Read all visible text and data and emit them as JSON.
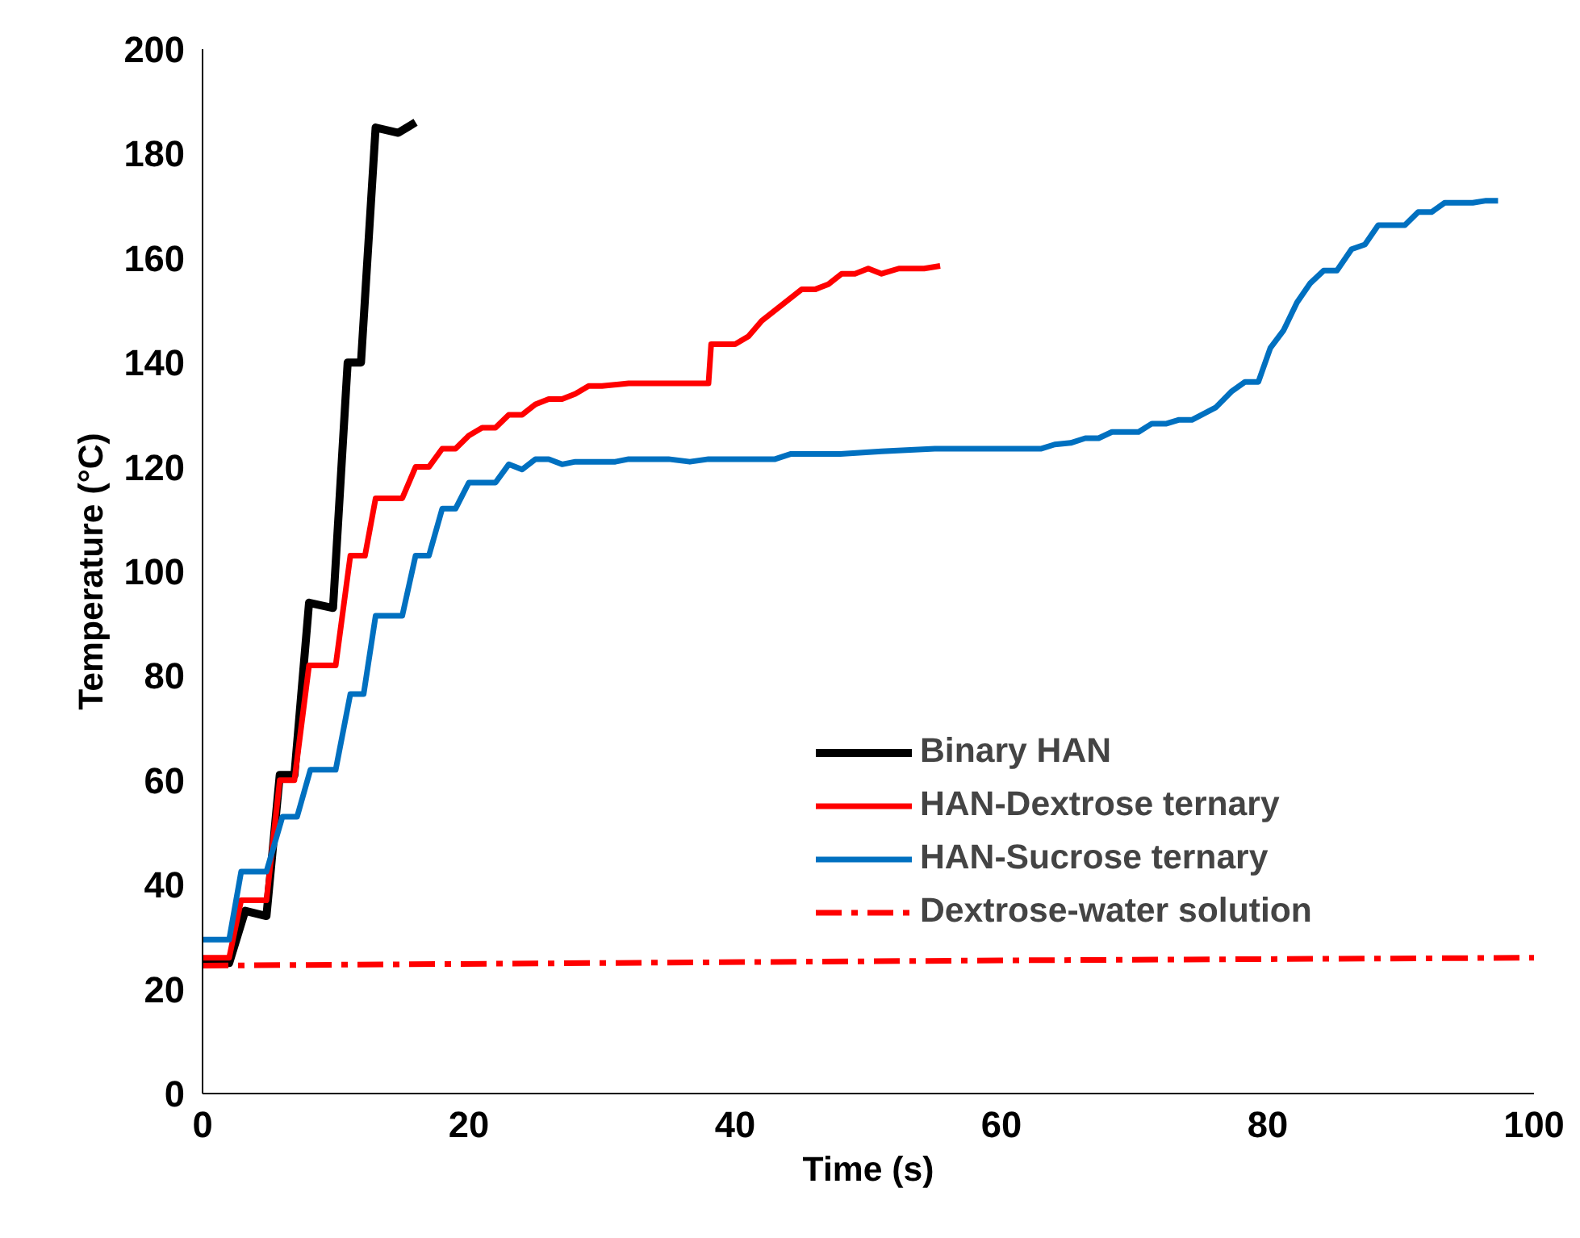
{
  "chart_data": {
    "type": "line",
    "xlabel": "Time (s)",
    "ylabel": "Temperature (°C)",
    "xlim": [
      0,
      100
    ],
    "xticks": [
      0,
      20,
      40,
      60,
      80,
      100
    ],
    "ylim": [
      0,
      200
    ],
    "yticks": [
      0,
      20,
      40,
      60,
      80,
      100,
      120,
      140,
      160,
      180,
      200
    ],
    "grid": false,
    "legend": "right",
    "marker": "none",
    "series": [
      {
        "name": "Binary HAN",
        "color": "#000000",
        "line_style": "solid",
        "x": [
          0,
          2,
          3.2,
          4.8,
          5.8,
          6.9,
          8,
          9.8,
          10.9,
          11.9,
          13,
          14.7,
          16
        ],
        "values": [
          25,
          25,
          35,
          34,
          61,
          61,
          94,
          93,
          140,
          140,
          185,
          184,
          186
        ]
      },
      {
        "name": "HAN-Dextrose ternary",
        "color": "#ff0000",
        "line_style": "solid",
        "x": [
          0,
          2,
          2.9,
          4.8,
          5.8,
          6.9,
          8,
          10,
          11.1,
          12.2,
          13,
          15,
          16,
          17,
          18,
          19,
          20,
          21,
          22,
          23,
          24,
          25,
          26,
          27,
          28,
          29,
          30,
          32,
          35,
          38,
          38.2,
          40,
          41,
          42,
          43,
          45,
          46,
          47,
          48,
          49,
          50,
          51,
          52.3,
          54.2,
          55.4
        ],
        "values": [
          26,
          26,
          37,
          37,
          60,
          60,
          82,
          82,
          103,
          103,
          114,
          114,
          120,
          120,
          123.5,
          123.5,
          126,
          127.5,
          127.5,
          130,
          130,
          132,
          133,
          133,
          134,
          135.5,
          135.5,
          136,
          136,
          136,
          143.5,
          143.5,
          145,
          148,
          150,
          154,
          154,
          155,
          157,
          157,
          158,
          157,
          158,
          158,
          158.5
        ]
      },
      {
        "name": "HAN-Sucrose ternary",
        "color": "#0070c0",
        "line_style": "solid",
        "x": [
          0,
          2,
          2.9,
          4.8,
          6,
          7.1,
          8.1,
          10,
          11.1,
          12.1,
          13,
          15,
          16,
          17,
          18,
          19,
          20,
          22,
          23,
          24,
          25,
          26,
          27,
          28,
          29,
          31,
          32,
          35,
          36.6,
          38,
          43,
          44.2,
          47.9,
          51,
          55,
          63,
          64,
          65.2,
          66.3,
          67.3,
          68.3,
          70.3,
          71.3,
          72.4,
          73.3,
          74.3,
          76.1,
          77.3,
          78.3,
          79.3,
          80.2,
          81.2,
          82.2,
          83.2,
          84.2,
          85.2,
          86.3,
          87.3,
          88.3,
          90.3,
          91.3,
          92.3,
          93.3,
          95.4,
          96.4,
          97.3
        ],
        "values": [
          29.5,
          29.5,
          42.5,
          42.5,
          53,
          53,
          62,
          62,
          76.5,
          76.5,
          91.5,
          91.5,
          103,
          103,
          112,
          112,
          117,
          117,
          120.5,
          119.5,
          121.5,
          121.5,
          120.5,
          121,
          121,
          121,
          121.5,
          121.5,
          121,
          121.5,
          121.5,
          122.5,
          122.5,
          123,
          123.5,
          123.5,
          124.3,
          124.6,
          125.5,
          125.5,
          126.7,
          126.7,
          128.3,
          128.3,
          129,
          129,
          131.4,
          134.5,
          136.3,
          136.3,
          142.8,
          146.2,
          151.5,
          155.2,
          157.6,
          157.6,
          161.7,
          162.6,
          166.3,
          166.3,
          168.8,
          168.8,
          170.6,
          170.6,
          171,
          171
        ]
      },
      {
        "name": "Dextrose-water solution",
        "color": "#ff0000",
        "line_style": "dashdot",
        "x": [
          0,
          30,
          60,
          100
        ],
        "values": [
          24.5,
          25,
          25.5,
          26
        ]
      }
    ]
  }
}
